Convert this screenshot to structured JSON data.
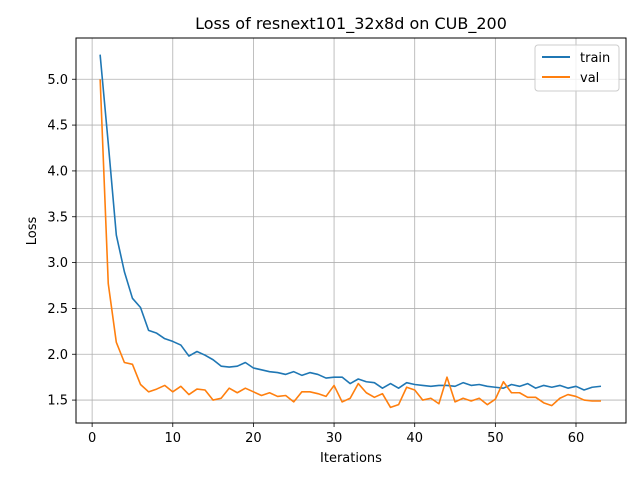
{
  "chart_data": {
    "type": "line",
    "title": "Loss of resnext101_32x8d on CUB_200",
    "xlabel": "Iterations",
    "ylabel": "Loss",
    "xlim": [
      -2,
      66.2
    ],
    "ylim": [
      1.25,
      5.45
    ],
    "xticks": [
      0,
      10,
      20,
      30,
      40,
      50,
      60
    ],
    "yticks": [
      1.5,
      2.0,
      2.5,
      3.0,
      3.5,
      4.0,
      4.5,
      5.0
    ],
    "grid": true,
    "legend_position": "top-right",
    "x": [
      1,
      2,
      3,
      4,
      5,
      6,
      7,
      8,
      9,
      10,
      11,
      12,
      13,
      14,
      15,
      16,
      17,
      18,
      19,
      20,
      21,
      22,
      23,
      24,
      25,
      26,
      27,
      28,
      29,
      30,
      31,
      32,
      33,
      34,
      35,
      36,
      37,
      38,
      39,
      40,
      41,
      42,
      43,
      44,
      45,
      46,
      47,
      48,
      49,
      50,
      51,
      52,
      53,
      54,
      55,
      56,
      57,
      58,
      59,
      60,
      61,
      62,
      63
    ],
    "series": [
      {
        "name": "train",
        "color": "#1f77b4",
        "values": [
          5.26,
          4.3,
          3.3,
          2.9,
          2.61,
          2.51,
          2.26,
          2.23,
          2.17,
          2.14,
          2.1,
          1.98,
          2.03,
          1.99,
          1.94,
          1.87,
          1.86,
          1.87,
          1.91,
          1.85,
          1.83,
          1.81,
          1.8,
          1.78,
          1.81,
          1.77,
          1.8,
          1.78,
          1.74,
          1.75,
          1.75,
          1.68,
          1.73,
          1.7,
          1.69,
          1.63,
          1.68,
          1.63,
          1.69,
          1.67,
          1.66,
          1.65,
          1.66,
          1.66,
          1.65,
          1.69,
          1.66,
          1.67,
          1.65,
          1.64,
          1.63,
          1.67,
          1.65,
          1.68,
          1.63,
          1.66,
          1.64,
          1.66,
          1.63,
          1.65,
          1.61,
          1.64,
          1.65
        ]
      },
      {
        "name": "val",
        "color": "#ff7f0e",
        "values": [
          4.99,
          2.77,
          2.13,
          1.91,
          1.89,
          1.67,
          1.59,
          1.62,
          1.66,
          1.59,
          1.65,
          1.56,
          1.62,
          1.61,
          1.5,
          1.52,
          1.63,
          1.58,
          1.63,
          1.59,
          1.55,
          1.58,
          1.54,
          1.55,
          1.48,
          1.59,
          1.59,
          1.57,
          1.54,
          1.66,
          1.48,
          1.52,
          1.68,
          1.58,
          1.53,
          1.57,
          1.42,
          1.45,
          1.64,
          1.61,
          1.5,
          1.52,
          1.46,
          1.75,
          1.48,
          1.52,
          1.49,
          1.52,
          1.45,
          1.51,
          1.7,
          1.58,
          1.58,
          1.53,
          1.53,
          1.47,
          1.44,
          1.52,
          1.56,
          1.54,
          1.5,
          1.49,
          1.49
        ]
      }
    ]
  }
}
